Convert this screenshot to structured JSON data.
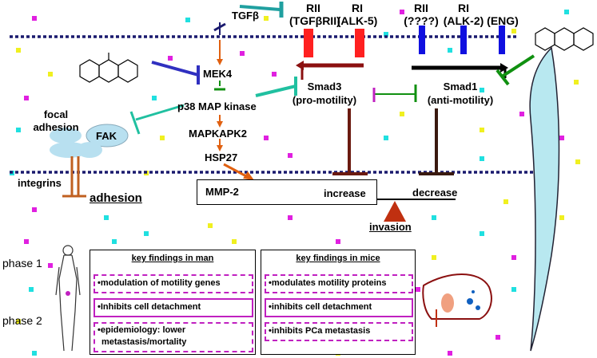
{
  "receptors": {
    "rii_left": {
      "line1": "RII",
      "line2": "(TGFβRII)"
    },
    "ri_left": {
      "line1": "RI",
      "line2": "(ALK-5)"
    },
    "rii_right": {
      "line1": "RII",
      "line2": "(????)"
    },
    "ri_right": {
      "line1": "RI",
      "line2": "(ALK-2)"
    },
    "eng": "(ENG)"
  },
  "pathway": {
    "tgfb": "TGFβ",
    "mek4": "MEK4",
    "p38": "p38 MAP kinase",
    "mapkapk2": "MAPKAPK2",
    "hsp27": "HSP27",
    "mmp2": "MMP-2",
    "smad3": {
      "line1": "Smad3",
      "line2": "(pro-motility)"
    },
    "smad1": {
      "line1": "Smad1",
      "line2": "(anti-motility)"
    },
    "increase": "increase",
    "decrease": "decrease",
    "invasion": "invasion"
  },
  "adhesion": {
    "focal_line1": "focal",
    "focal_line2": "adhesion",
    "fak": "FAK",
    "integrins": "integrins",
    "adhesion": "adhesion"
  },
  "phases": {
    "phase1": "phase 1",
    "phase2": "phase 2"
  },
  "findings": {
    "man": {
      "title": "key findings in man",
      "items": [
        "•modulation of motility genes",
        "•Inhibits cell detachment",
        "•epidemiology: lower",
        "metastasis/mortality"
      ]
    },
    "mice": {
      "title": "key findings in mice",
      "items": [
        "•modulates motility proteins",
        "•inhibits cell detachment",
        "•inhibits PCa metastasis"
      ]
    }
  },
  "colors": {
    "membrane": "#1a1a6e",
    "alk5": "#ff2020",
    "alk2": "#1010e0",
    "inhibitor_blue": "#3030c0",
    "teal": "#20c0a0",
    "green": "#109010",
    "brown": "#6b1a10",
    "orange": "#e06010",
    "magenta": "#c020c0"
  }
}
